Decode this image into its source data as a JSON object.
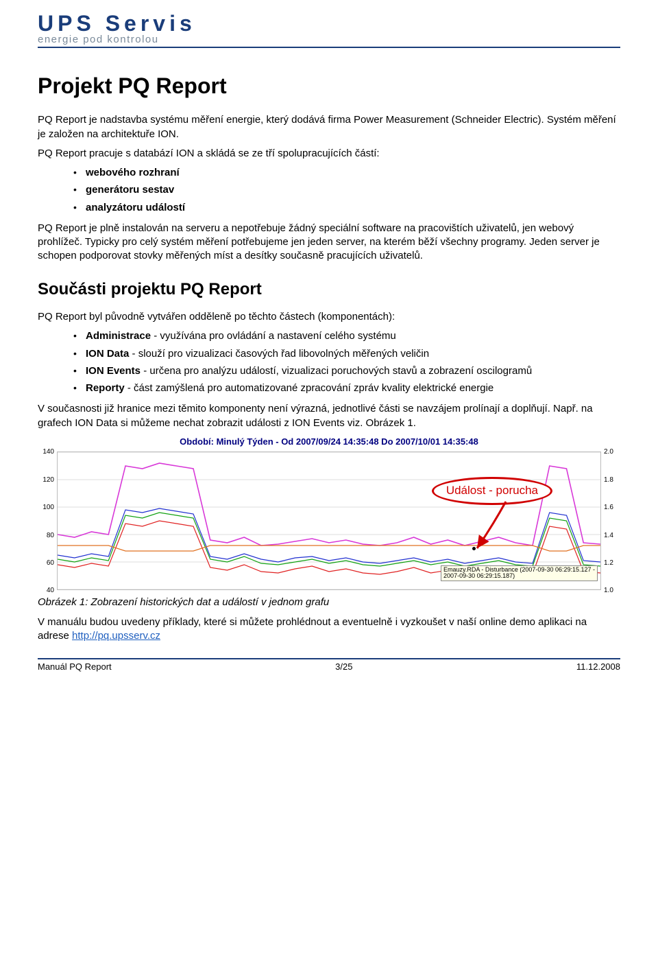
{
  "header": {
    "logo_main": "UPS Servis",
    "logo_sub": "energie pod kontrolou"
  },
  "h1": "Projekt PQ Report",
  "intro_p": "PQ Report je nadstavba systému měření energie, který dodává firma Power Measurement (Schneider Electric). Systém měření je založen na architektuře ION.",
  "parts_lead": "PQ Report pracuje s databází ION a skládá se ze tří spolupracujících částí:",
  "parts": [
    "webového rozhraní",
    "generátoru sestav",
    "analyzátoru událostí"
  ],
  "after_parts": "PQ Report je plně instalován na serveru a nepotřebuje žádný speciální software na pracovištích uživatelů, jen webový prohlížeč. Typicky pro celý systém měření potřebujeme jen jeden server, na kterém běží všechny programy. Jeden server je schopen podporovat stovky měřených míst a desítky současně pracujících uživatelů.",
  "h2": "Součásti projektu PQ Report",
  "components_lead": "PQ Report byl původně vytvářen odděleně po těchto částech (komponentách):",
  "components": [
    {
      "b": "Administrace",
      "t": " - využívána pro ovládání a nastavení celého systému"
    },
    {
      "b": "ION Data",
      "t": " - slouží pro vizualizaci časových řad libovolných měřených veličin"
    },
    {
      "b": "ION Events",
      "t": " - určena pro analýzu událostí, vizualizaci poruchových stavů a zobrazení oscilogramů"
    },
    {
      "b": "Reporty",
      "t": " - část zamýšlená pro automatizované zpracování zpráv kvality elektrické energie"
    }
  ],
  "after_components": "V současnosti již hranice mezi těmito komponenty není výrazná, jednotlivé části se navzájem prolínají a doplňují. Např. na grafech ION Data si můžeme nechat zobrazit události z ION Events viz. Obrázek 1.",
  "chart": {
    "title": "Období: Minulý Týden - Od 2007/09/24 14:35:48 Do 2007/10/01 14:35:48",
    "left_axis": {
      "ticks": [
        40,
        60,
        80,
        100,
        120,
        140
      ],
      "min": 40,
      "max": 140
    },
    "right_axis": {
      "ticks": [
        1.0,
        1.2,
        1.4,
        1.6,
        1.8,
        2.0
      ],
      "min": 1.0,
      "max": 2.0
    },
    "colors": {
      "background": "#ffffff",
      "grid": "#bbbbbb",
      "magenta": "#d838d8",
      "green": "#10a010",
      "blue": "#2030d0",
      "red": "#e02020",
      "orange": "#e07020"
    },
    "callout": "Událost - porucha",
    "tooltip_l1": "Emauzy.RDA - Disturbance (2007-09-30 06:29:15.127 -",
    "tooltip_l2": "2007-09-30 06:29:15.187)",
    "series": {
      "magenta": [
        80,
        78,
        82,
        80,
        130,
        128,
        132,
        130,
        128,
        76,
        74,
        78,
        72,
        73,
        75,
        77,
        74,
        76,
        73,
        72,
        74,
        78,
        73,
        76,
        72,
        75,
        78,
        74,
        72,
        130,
        128,
        74,
        73
      ],
      "green": [
        62,
        60,
        63,
        61,
        94,
        92,
        96,
        94,
        92,
        62,
        60,
        64,
        59,
        58,
        60,
        62,
        59,
        61,
        58,
        57,
        59,
        61,
        58,
        60,
        57,
        59,
        61,
        58,
        57,
        92,
        90,
        58,
        57
      ],
      "blue": [
        65,
        63,
        66,
        64,
        98,
        96,
        99,
        97,
        95,
        64,
        62,
        66,
        62,
        60,
        63,
        64,
        61,
        63,
        60,
        59,
        61,
        63,
        60,
        62,
        59,
        61,
        63,
        60,
        59,
        96,
        94,
        61,
        60
      ],
      "red": [
        58,
        56,
        59,
        57,
        88,
        86,
        90,
        88,
        86,
        56,
        54,
        58,
        53,
        52,
        55,
        57,
        53,
        55,
        52,
        51,
        53,
        56,
        52,
        54,
        51,
        53,
        56,
        52,
        51,
        86,
        84,
        53,
        52
      ]
    }
  },
  "caption": "Obrázek 1: Zobrazení historických dat a událostí v jednom grafu",
  "closing_text": "V manuálu budou uvedeny příklady, které si můžete prohlédnout a eventuelně i vyzkoušet v naší online demo aplikaci na adrese ",
  "closing_link": "http://pq.upsserv.cz",
  "footer": {
    "left": "Manuál PQ Report",
    "center": "3/25",
    "right": "11.12.2008"
  }
}
